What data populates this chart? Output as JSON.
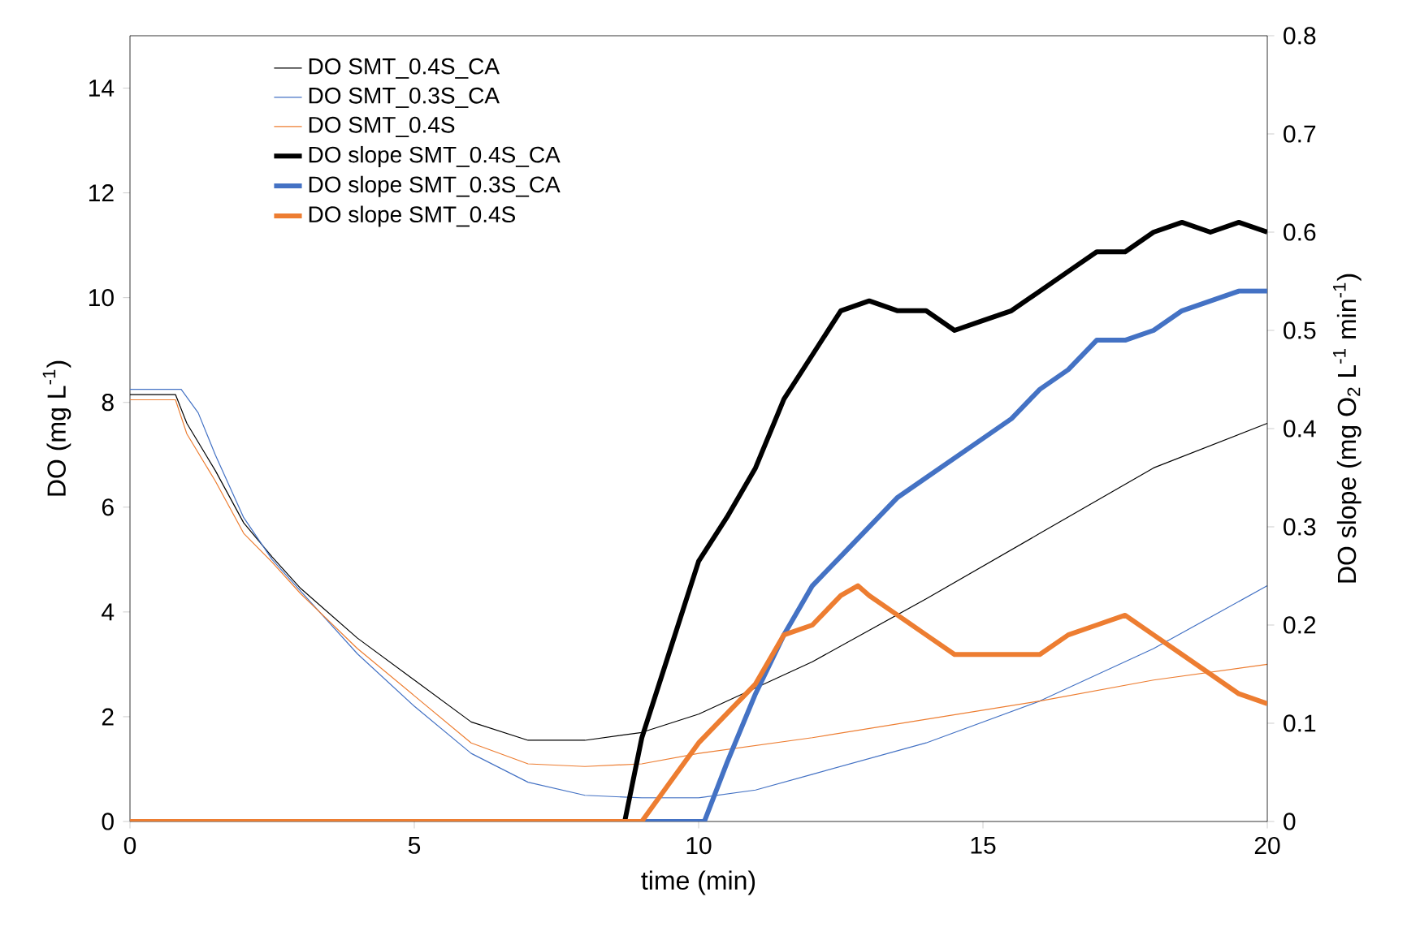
{
  "chart_data": {
    "type": "line",
    "xlabel": "time (min)",
    "ylabel": "DO (mg L$^{-1}$)",
    "y2label": "DO slope (mg O$_{2}$ L$^{-1}$ min$^{-1}$)",
    "xlim": [
      0,
      20
    ],
    "xticks": [
      0,
      5,
      10,
      15,
      20
    ],
    "ylim": [
      0,
      15
    ],
    "yticks": [
      0,
      2,
      4,
      6,
      8,
      10,
      12,
      14
    ],
    "y2lim": [
      0,
      0.8
    ],
    "y2ticks": [
      0,
      0.1,
      0.2,
      0.3,
      0.4,
      0.5,
      0.6,
      0.7,
      0.8
    ],
    "legend": "top left",
    "grid": false,
    "marker": "none",
    "line_style": "solid",
    "series": [
      {
        "name": "DO SMT_0.4S_CA",
        "color": "#000000",
        "x": [
          0,
          0.8,
          1,
          1.5,
          2,
          2.5,
          3,
          4,
          5,
          6,
          7,
          8,
          9,
          10,
          12,
          14,
          16,
          18,
          20
        ],
        "values": [
          8.15,
          8.15,
          7.6,
          6.7,
          5.7,
          5.05,
          4.45,
          3.5,
          2.7,
          1.9,
          1.55,
          1.55,
          1.7,
          2.05,
          3.05,
          4.25,
          5.5,
          6.75,
          7.6
        ]
      },
      {
        "name": "DO SMT_0.3S_CA",
        "color": "#4472c4",
        "x": [
          0,
          0.9,
          1.2,
          1.5,
          2,
          2.5,
          3,
          4,
          5,
          6,
          7,
          8,
          9,
          10,
          11,
          12,
          14,
          16,
          18,
          20
        ],
        "values": [
          8.25,
          8.25,
          7.8,
          7.0,
          5.8,
          5.0,
          4.4,
          3.2,
          2.2,
          1.3,
          0.75,
          0.5,
          0.45,
          0.45,
          0.6,
          0.9,
          1.5,
          2.3,
          3.3,
          4.5
        ]
      },
      {
        "name": "DO SMT_0.4S",
        "color": "#ed7d31",
        "x": [
          0,
          0.8,
          1,
          1.5,
          2,
          2.5,
          3,
          4,
          5,
          6,
          7,
          8,
          9,
          10,
          12,
          14,
          16,
          18,
          20
        ],
        "values": [
          8.05,
          8.05,
          7.4,
          6.5,
          5.5,
          4.95,
          4.35,
          3.3,
          2.4,
          1.5,
          1.1,
          1.05,
          1.1,
          1.3,
          1.6,
          1.95,
          2.3,
          2.7,
          3.0
        ]
      },
      {
        "name": "DO slope SMT_0.4S_CA",
        "color": "#000000",
        "axis": "y2",
        "x": [
          0,
          8.7,
          9,
          9.5,
          10,
          10.5,
          11,
          11.5,
          12,
          12.5,
          13,
          13.5,
          14,
          14.5,
          15,
          15.5,
          16,
          16.5,
          17,
          17.5,
          18,
          18.5,
          19,
          19.5,
          20
        ],
        "values": [
          0,
          0,
          0.085,
          0.175,
          0.265,
          0.31,
          0.36,
          0.43,
          0.475,
          0.52,
          0.53,
          0.52,
          0.52,
          0.5,
          0.51,
          0.52,
          0.54,
          0.56,
          0.58,
          0.58,
          0.6,
          0.61,
          0.6,
          0.61,
          0.6
        ]
      },
      {
        "name": "DO slope SMT_0.3S_CA",
        "color": "#4472c4",
        "axis": "y2",
        "x": [
          0,
          10.1,
          10.5,
          11,
          11.5,
          12,
          12.5,
          13,
          13.5,
          14,
          14.5,
          15,
          15.5,
          16,
          16.5,
          17,
          17.5,
          18,
          18.5,
          19,
          19.5,
          20
        ],
        "values": [
          0,
          0,
          0.06,
          0.13,
          0.19,
          0.24,
          0.27,
          0.3,
          0.33,
          0.35,
          0.37,
          0.39,
          0.41,
          0.44,
          0.46,
          0.49,
          0.49,
          0.5,
          0.52,
          0.53,
          0.54,
          0.54
        ]
      },
      {
        "name": "DO slope SMT_0.4S",
        "color": "#ed7d31",
        "axis": "y2",
        "x": [
          0,
          9,
          9.5,
          10,
          10.5,
          11,
          11.5,
          12,
          12.5,
          12.8,
          13,
          13.5,
          14,
          14.5,
          15,
          16,
          16.5,
          17,
          17.5,
          18,
          18.5,
          19,
          19.5,
          20
        ],
        "values": [
          0,
          0,
          0.04,
          0.08,
          0.11,
          0.14,
          0.19,
          0.2,
          0.23,
          0.24,
          0.23,
          0.21,
          0.19,
          0.17,
          0.17,
          0.17,
          0.19,
          0.2,
          0.21,
          0.19,
          0.17,
          0.15,
          0.13,
          0.12
        ]
      }
    ]
  }
}
